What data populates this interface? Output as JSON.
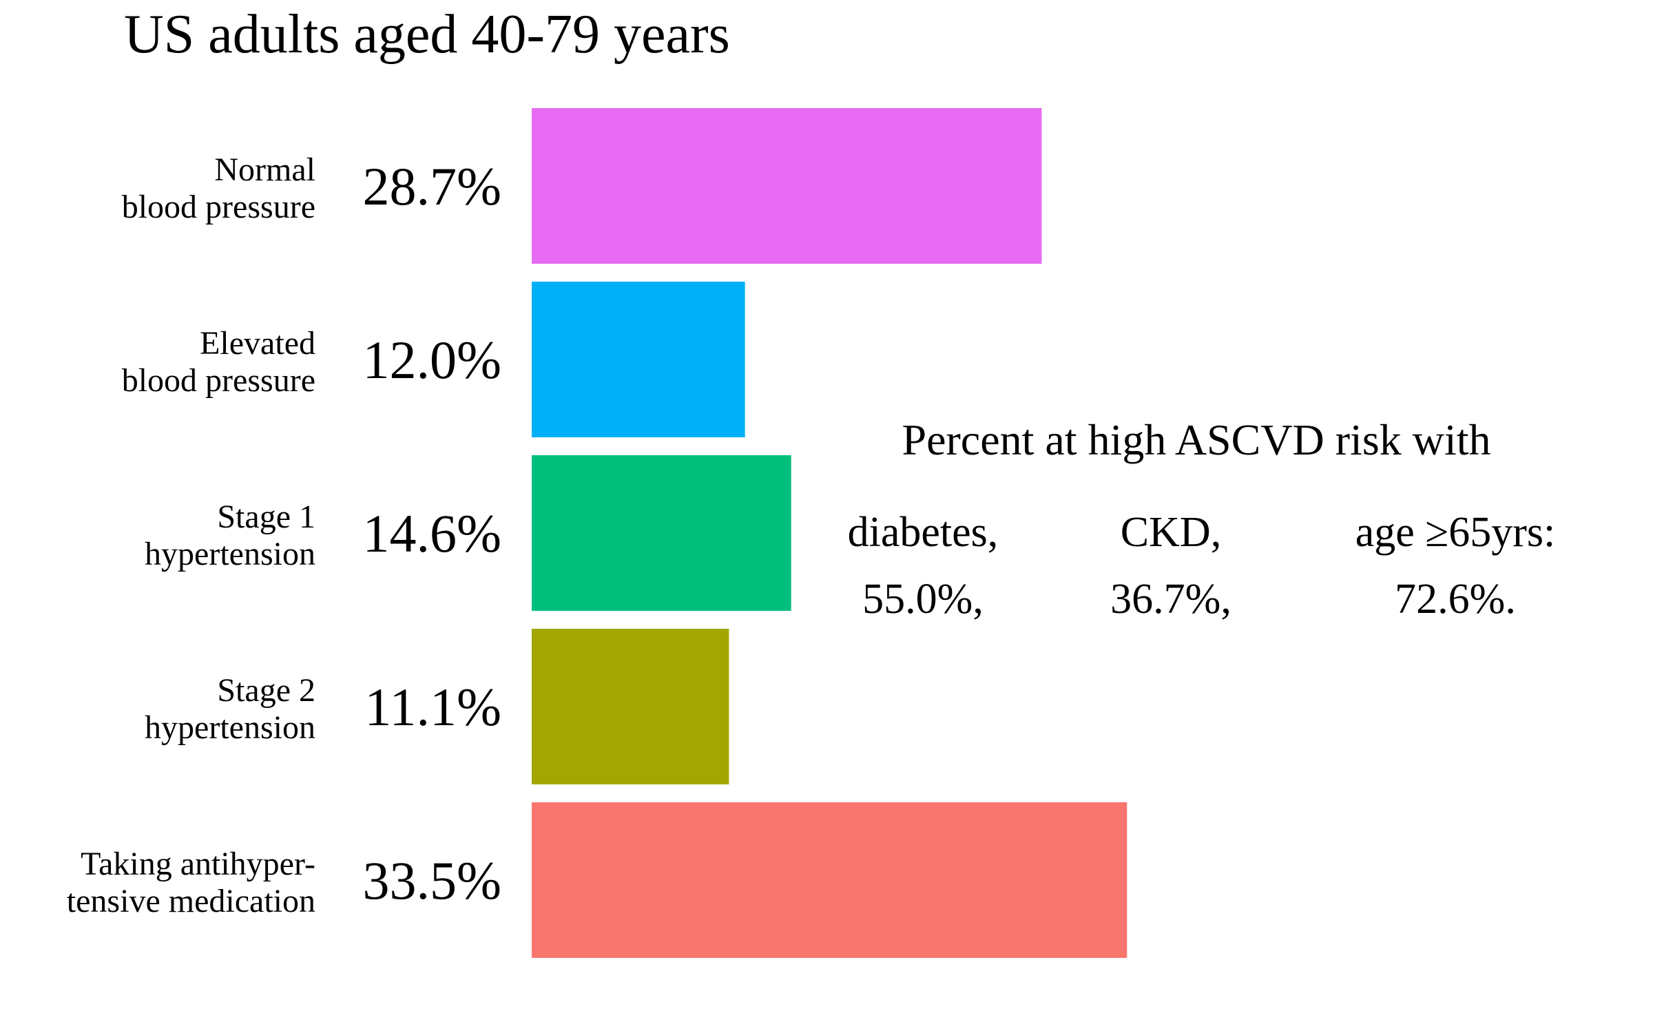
{
  "chart_data": {
    "type": "bar",
    "orientation": "horizontal",
    "title": "US adults aged 40-79 years",
    "categories": [
      [
        "Normal",
        "blood pressure"
      ],
      [
        "Elevated",
        "blood pressure"
      ],
      [
        "Stage 1",
        "hypertension"
      ],
      [
        "Stage 2",
        "hypertension"
      ],
      [
        "Taking antihyper-",
        "tensive medication"
      ]
    ],
    "values": [
      28.7,
      12.0,
      14.6,
      11.1,
      33.5
    ],
    "value_labels": [
      "28.7%",
      "12.0%",
      "14.6%",
      "11.1%",
      "33.5%"
    ],
    "colors": [
      "#E76BF3",
      "#00B0F6",
      "#00BF7D",
      "#A3A500",
      "#F8766D"
    ],
    "xlim": [
      0,
      100
    ],
    "grid": false,
    "axes_visible": false,
    "annotation": {
      "heading": "Percent at high ASCVD risk with",
      "groups": [
        {
          "label": "diabetes,",
          "value": "55.0%,"
        },
        {
          "label": "CKD,",
          "value": "36.7%,"
        },
        {
          "label": "age ≥65yrs:",
          "value": "72.6%."
        }
      ]
    }
  }
}
